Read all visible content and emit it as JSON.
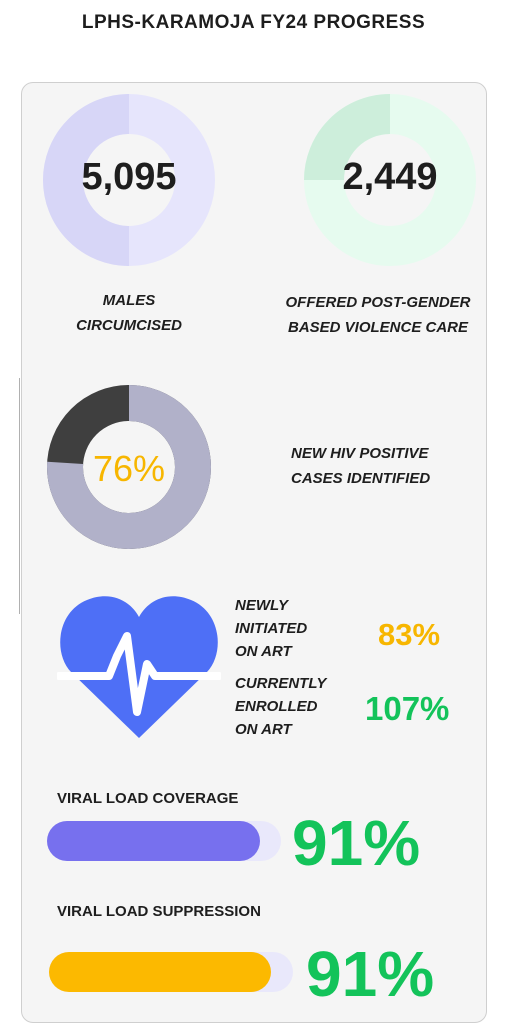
{
  "title": "LPHS-KARAMOJA FY24 PROGRESS",
  "colors": {
    "males_ring_light": "#e6e5fc",
    "males_ring_dark": "#d7d6f7",
    "gbv_ring_light": "#e6fbef",
    "gbv_ring_dark": "#cdeedb",
    "hiv_ring_main": "#b1b1c9",
    "hiv_ring_dark": "#3f3f3f",
    "hiv_pct": "#f7b600",
    "heart": "#4e6ff6",
    "orange": "#f7b600",
    "green": "#13c35a",
    "coverage_bar": "#7770ee",
    "coverage_track": "#e9e8fb",
    "suppression_bar": "#fcb900",
    "suppression_track": "#e9e8fb"
  },
  "stats": {
    "males_circumcised": {
      "value": "5,095",
      "label_line1": "MALES",
      "label_line2": "CIRCUMCISED"
    },
    "gbv_care": {
      "value": "2,449",
      "label_line1": "OFFERED POST-GENDER",
      "label_line2": "BASED VIOLENCE CARE"
    },
    "hiv_positive": {
      "value": "76%",
      "fraction": 0.76,
      "label_line1": "NEW HIV POSITIVE",
      "label_line2": "CASES IDENTIFIED"
    }
  },
  "art": {
    "icon": "heart-pulse-icon",
    "newly_initiated": {
      "line1": "NEWLY",
      "line2": "INITIATED",
      "line3": "ON ART",
      "value": "83%"
    },
    "currently_enrolled": {
      "line1": "CURRENTLY",
      "line2": "ENROLLED",
      "line3": "ON ART",
      "value": "107%"
    }
  },
  "viral_load": {
    "coverage": {
      "label": "VIRAL LOAD COVERAGE",
      "value": "91%",
      "fraction": 0.91
    },
    "suppression": {
      "label": "VIRAL LOAD SUPPRESSION",
      "value": "91%",
      "fraction": 0.91
    }
  }
}
